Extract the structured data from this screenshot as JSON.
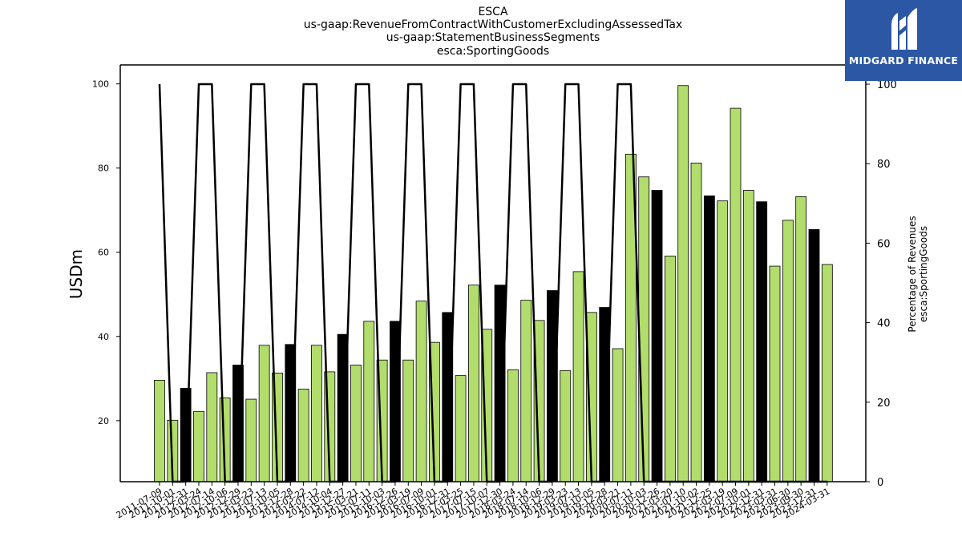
{
  "titles": [
    "ESCA",
    "us-gaap:RevenueFromContractWithCustomerExcludingAssessedTax",
    "us-gaap:StatementBusinessSegments",
    "esca:SportingGoods"
  ],
  "logo": {
    "text": "MIDGARD FINANCE",
    "color": "#2b57a5"
  },
  "colors": {
    "green": "#b2dc6c",
    "black": "#000000",
    "line": "#000000"
  },
  "chart_data": {
    "type": "bar",
    "xlabel": "",
    "ylabel": "USDm",
    "ylabel_right_lines": [
      "Percentage of Revenues",
      "esca:SportingGoods"
    ],
    "ylim": [
      5.5,
      104.5
    ],
    "ylim_right": [
      0,
      100
    ],
    "yticks": [
      20,
      40,
      60,
      80,
      100
    ],
    "yticks_right": [
      0,
      20,
      40,
      60,
      80,
      100
    ],
    "grid": false,
    "legend": "none",
    "categories": [
      "2011-07-09",
      "2011-10-01",
      "2011-12-31",
      "2012-03-24",
      "2012-07-14",
      "2012-10-06",
      "2012-12-29",
      "2013-03-23",
      "2013-07-13",
      "2013-10-05",
      "2013-12-28",
      "2014-03-22",
      "2014-07-12",
      "2014-10-04",
      "2015-12-27",
      "2015-03-21",
      "2015-07-11",
      "2015-10-03",
      "2016-12-26",
      "2016-03-19",
      "2016-07-09",
      "2016-10-01",
      "2016-12-31",
      "2017-03-25",
      "2017-07-15",
      "2017-10-07",
      "2017-12-30",
      "2018-03-24",
      "2018-07-14",
      "2018-10-06",
      "2018-12-29",
      "2019-03-23",
      "2019-07-13",
      "2019-10-05",
      "2019-12-28",
      "2020-03-21",
      "2020-07-11",
      "2020-10-03",
      "2020-12-26",
      "2021-03-20",
      "2021-07-10",
      "2021-10-02",
      "2021-12-25",
      "2022-03-19",
      "2022-07-09",
      "2022-10-01",
      "2022-12-31",
      "2023-03-31",
      "2023-06-30",
      "2023-09-30",
      "2023-12-31",
      "2024-03-31"
    ],
    "tick_labels_visible": [
      "2011-07-09",
      "2011-10-01",
      "2011-12-31",
      "2012-03-24",
      "2012-07-14",
      "2012-10-06",
      "2012-12-29",
      "2013-03-23",
      "2013-07-13",
      "2013-10-05",
      "2013-12-28",
      "2014-03-22",
      "2014-07-12",
      "2014-10-04",
      "2015-12-27",
      "2015-03-21",
      "2015-07-11",
      "2015-10-03",
      "2016-12-26",
      "2016-03-19",
      "2016-07-09",
      "2016-10-01",
      "2016-12-31",
      "2017-03-25",
      "2017-07-15",
      "2017-10-07",
      "2017-12-30",
      "2018-03-24",
      "2018-07-14",
      "2018-10-06",
      "2018-12-29",
      "2019-03-23",
      "2019-07-13",
      "2019-10-05",
      "2019-12-28",
      "2020-03-21",
      "2020-07-11",
      "2020-10-03",
      "2020-12-26",
      "2021-03-20",
      "2021-07-10",
      "2021-10-02",
      "2021-12-25",
      "2022-03-19",
      "2022-07-09",
      "2022-10-01",
      "2022-12-31",
      "2023-03-31",
      "2023-06-30",
      "2023-09-30",
      "2023-12-31",
      "2024-03-31"
    ],
    "values": [
      29.6,
      20.1,
      27.7,
      22.2,
      31.4,
      25.4,
      33.2,
      25.1,
      37.9,
      31.3,
      38.1,
      27.5,
      37.9,
      31.6,
      40.5,
      33.2,
      43.6,
      34.4,
      43.6,
      34.4,
      48.4,
      38.6,
      45.7,
      30.7,
      52.2,
      41.7,
      52.2,
      32.1,
      48.6,
      43.8,
      50.9,
      31.9,
      55.4,
      45.7,
      46.9,
      37.1,
      83.3,
      77.9,
      74.7,
      59.1,
      99.6,
      81.2,
      73.4,
      72.2,
      94.2,
      74.7,
      72.0,
      56.7,
      67.6,
      73.2,
      65.4,
      57.1
    ],
    "bar_colors": [
      "green",
      "green",
      "black",
      "green",
      "green",
      "green",
      "black",
      "green",
      "green",
      "green",
      "black",
      "green",
      "green",
      "green",
      "black",
      "green",
      "green",
      "green",
      "black",
      "green",
      "green",
      "green",
      "black",
      "green",
      "green",
      "green",
      "black",
      "green",
      "green",
      "green",
      "black",
      "green",
      "green",
      "green",
      "black",
      "green",
      "green",
      "green",
      "black",
      "green",
      "green",
      "green",
      "black",
      "green",
      "green",
      "green",
      "black",
      "green",
      "green",
      "green",
      "black",
      "green"
    ],
    "percentage_series": {
      "values": [
        100,
        0,
        0,
        100,
        100,
        0,
        0,
        100,
        100,
        0,
        0,
        100,
        100,
        0,
        0,
        100,
        100,
        0,
        0,
        100,
        100,
        0,
        0,
        100,
        100,
        0,
        0,
        100,
        100,
        0,
        0,
        100,
        100,
        0,
        0,
        100,
        100,
        0,
        0,
        0,
        0,
        0,
        0,
        0,
        0,
        0,
        0,
        0,
        0,
        0,
        0,
        0
      ]
    }
  }
}
